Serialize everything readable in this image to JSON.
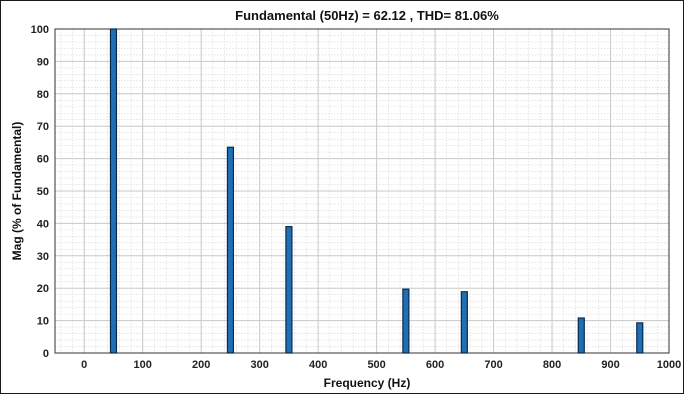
{
  "chart_data": {
    "type": "bar",
    "title": "Fundamental (50Hz) = 62.12 , THD= 81.06%",
    "xlabel": "Frequency (Hz)",
    "ylabel": "Mag (% of Fundamental)",
    "xlim": [
      -50,
      1000
    ],
    "ylim": [
      0,
      100
    ],
    "xticks": [
      0,
      100,
      200,
      300,
      400,
      500,
      600,
      700,
      800,
      900,
      1000
    ],
    "yticks": [
      0,
      10,
      20,
      30,
      40,
      50,
      60,
      70,
      80,
      90,
      100
    ],
    "grid": "major+minor",
    "bar_color": "#1f6fb4",
    "bar_edge_color": "#0a2a4a",
    "x": [
      50,
      250,
      350,
      550,
      650,
      850,
      950
    ],
    "values": [
      100,
      63.5,
      39,
      19.7,
      18.9,
      10.8,
      9.3
    ]
  }
}
